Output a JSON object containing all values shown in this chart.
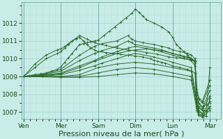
{
  "bg_color": "#c8ece8",
  "grid_color_major": "#a8d8d4",
  "grid_color_minor": "#b8e0dc",
  "line_color": "#2d6a2d",
  "marker_color": "#2d6a2d",
  "xlabel": "Pression niveau de la mer( hPa )",
  "xlabel_fontsize": 8,
  "tick_labels": [
    "Ven",
    "Mer",
    "Sam",
    "Dim",
    "Lun",
    "Mar"
  ],
  "tick_positions": [
    0,
    1,
    2,
    3,
    4,
    5
  ],
  "xlim": [
    -0.05,
    5.3
  ],
  "ylim": [
    1006.6,
    1013.2
  ],
  "yticks": [
    1007,
    1008,
    1009,
    1010,
    1011,
    1012
  ],
  "series": [
    [
      0.0,
      1009.0,
      0.15,
      1009.05,
      0.3,
      1009.1,
      0.45,
      1009.15,
      0.6,
      1009.2,
      0.75,
      1009.3,
      0.9,
      1009.4,
      1.0,
      1009.55,
      1.1,
      1009.8,
      1.2,
      1010.05,
      1.3,
      1010.3,
      1.4,
      1010.55,
      1.5,
      1010.8,
      1.6,
      1010.85,
      1.7,
      1010.9,
      1.8,
      1010.95,
      1.9,
      1011.0,
      2.0,
      1011.05,
      2.15,
      1011.3,
      2.3,
      1011.55,
      2.45,
      1011.8,
      2.6,
      1012.05,
      2.75,
      1012.3,
      2.9,
      1012.55,
      3.0,
      1012.8,
      3.1,
      1012.6,
      3.2,
      1012.4,
      3.3,
      1012.2,
      3.5,
      1012.0,
      3.7,
      1011.8,
      3.9,
      1011.5,
      4.0,
      1011.2,
      4.1,
      1010.8,
      4.2,
      1010.6,
      4.3,
      1010.4,
      4.4,
      1010.2,
      4.5,
      1010.0,
      4.6,
      1009.9,
      4.65,
      1007.5,
      4.7,
      1007.2,
      4.8,
      1007.1,
      4.9,
      1007.05,
      5.0,
      1009.5
    ],
    [
      0.0,
      1009.0,
      0.5,
      1009.1,
      1.0,
      1009.4,
      1.5,
      1010.2,
      1.9,
      1010.7,
      2.1,
      1010.85,
      2.5,
      1011.0,
      2.8,
      1011.3,
      2.9,
      1011.1,
      3.0,
      1011.0,
      3.2,
      1010.9,
      3.5,
      1010.8,
      3.7,
      1010.7,
      3.9,
      1010.6,
      4.0,
      1010.5,
      4.2,
      1010.4,
      4.4,
      1010.3,
      4.5,
      1010.2,
      4.6,
      1010.0,
      4.65,
      1008.3,
      4.7,
      1007.8,
      4.8,
      1007.6,
      5.0,
      1008.8
    ],
    [
      0.0,
      1009.0,
      0.5,
      1009.08,
      1.0,
      1009.3,
      1.5,
      1009.9,
      1.9,
      1010.3,
      2.1,
      1010.45,
      2.5,
      1010.7,
      2.8,
      1011.0,
      2.9,
      1010.9,
      3.0,
      1010.8,
      3.5,
      1010.6,
      3.7,
      1010.5,
      4.0,
      1010.3,
      4.3,
      1010.1,
      4.5,
      1010.0,
      4.6,
      1009.8,
      4.65,
      1008.1,
      4.7,
      1007.7,
      4.8,
      1007.5,
      5.0,
      1008.5
    ],
    [
      0.0,
      1009.0,
      0.5,
      1009.05,
      1.0,
      1009.2,
      1.5,
      1009.6,
      1.9,
      1009.9,
      2.1,
      1010.1,
      2.5,
      1010.4,
      2.8,
      1010.6,
      3.0,
      1010.7,
      3.5,
      1010.5,
      4.0,
      1010.2,
      4.5,
      1009.9,
      4.6,
      1009.6,
      4.65,
      1007.8,
      4.7,
      1007.5,
      4.8,
      1007.2,
      5.0,
      1008.2
    ],
    [
      0.0,
      1009.0,
      0.5,
      1009.02,
      1.0,
      1009.1,
      1.5,
      1009.35,
      1.9,
      1009.6,
      2.1,
      1009.75,
      2.5,
      1010.0,
      2.8,
      1010.2,
      3.0,
      1010.3,
      3.5,
      1010.1,
      4.0,
      1009.8,
      4.5,
      1009.5,
      4.65,
      1007.6,
      4.7,
      1007.3,
      4.8,
      1007.1,
      5.0,
      1007.9
    ],
    [
      0.0,
      1009.0,
      1.0,
      1009.0,
      1.5,
      1009.1,
      2.0,
      1009.5,
      2.5,
      1009.7,
      3.0,
      1009.8,
      3.5,
      1009.7,
      4.0,
      1009.5,
      4.5,
      1009.3,
      4.65,
      1007.5,
      4.7,
      1007.1,
      4.8,
      1006.9,
      5.0,
      1007.6
    ],
    [
      0.0,
      1009.0,
      1.0,
      1009.0,
      1.5,
      1009.0,
      2.0,
      1009.2,
      2.5,
      1009.4,
      3.0,
      1009.5,
      3.5,
      1009.4,
      4.0,
      1009.2,
      4.5,
      1009.0,
      4.65,
      1007.3,
      4.7,
      1006.9,
      4.8,
      1006.75,
      5.0,
      1007.3
    ],
    [
      0.0,
      1009.0,
      1.0,
      1008.95,
      1.5,
      1008.95,
      2.0,
      1009.0,
      2.5,
      1009.1,
      3.0,
      1009.2,
      3.5,
      1009.15,
      4.0,
      1009.0,
      4.5,
      1008.8,
      4.65,
      1007.1,
      4.7,
      1006.8,
      4.8,
      1006.7,
      5.0,
      1007.1
    ],
    [
      0.0,
      1009.0,
      0.5,
      1009.05,
      1.0,
      1009.15,
      1.5,
      1009.5,
      1.9,
      1009.85,
      2.5,
      1010.3,
      3.0,
      1010.5,
      3.3,
      1010.55,
      3.5,
      1010.5,
      3.7,
      1010.45,
      4.0,
      1010.3,
      4.2,
      1010.2,
      4.4,
      1010.1,
      4.5,
      1010.0,
      4.6,
      1009.8,
      4.65,
      1007.8,
      4.7,
      1007.5,
      4.8,
      1007.3,
      5.0,
      1007.5
    ],
    [
      0.0,
      1009.0,
      0.3,
      1009.5,
      0.6,
      1010.0,
      0.9,
      1010.3,
      1.0,
      1010.4,
      1.1,
      1010.6,
      1.2,
      1010.8,
      1.3,
      1011.0,
      1.4,
      1011.1,
      1.5,
      1011.2,
      1.6,
      1011.0,
      1.7,
      1010.8,
      1.8,
      1010.6,
      1.9,
      1010.5,
      2.0,
      1010.4,
      2.2,
      1010.35,
      2.4,
      1010.3,
      2.6,
      1010.25,
      2.8,
      1010.2,
      3.0,
      1010.15,
      3.2,
      1010.1,
      3.4,
      1010.0,
      3.5,
      1009.9,
      3.6,
      1009.85,
      3.7,
      1009.8,
      3.8,
      1009.75,
      4.0,
      1009.6,
      4.2,
      1009.5,
      4.4,
      1009.4,
      4.5,
      1009.3,
      4.6,
      1009.2,
      4.65,
      1007.2,
      4.7,
      1006.9,
      4.8,
      1006.8,
      4.9,
      1006.75,
      5.0,
      1007.8
    ],
    [
      0.0,
      1009.0,
      0.3,
      1009.7,
      0.6,
      1010.2,
      0.9,
      1010.5,
      1.0,
      1010.55,
      1.1,
      1010.7,
      1.2,
      1010.85,
      1.3,
      1011.0,
      1.4,
      1011.15,
      1.5,
      1011.3,
      1.7,
      1011.1,
      1.9,
      1010.9,
      2.2,
      1010.75,
      2.5,
      1010.6,
      2.8,
      1010.5,
      3.0,
      1010.45,
      3.3,
      1010.35,
      3.6,
      1010.25,
      3.9,
      1010.1,
      4.1,
      1010.05,
      4.3,
      1010.0,
      4.5,
      1009.95,
      4.6,
      1009.85,
      4.65,
      1007.3,
      4.7,
      1007.0,
      4.8,
      1006.9,
      5.0,
      1007.2
    ]
  ]
}
